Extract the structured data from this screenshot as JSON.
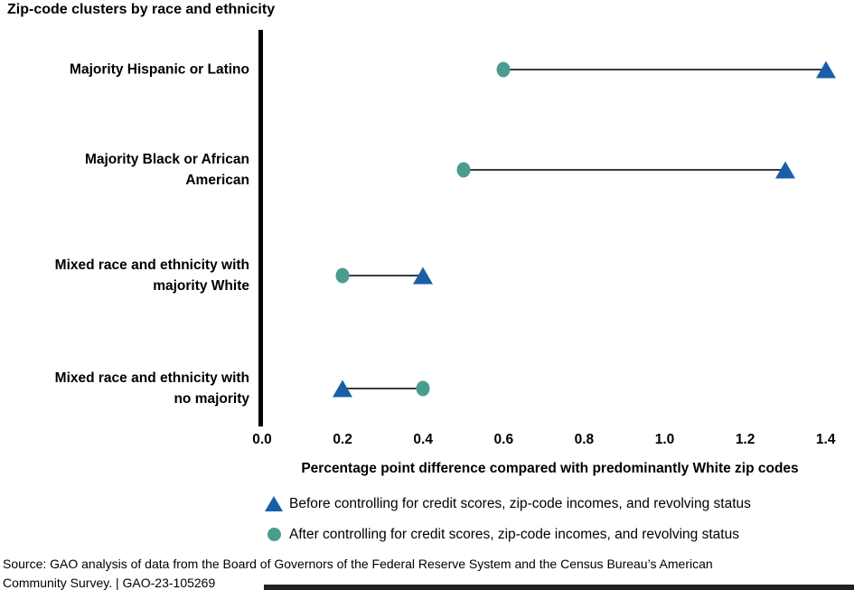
{
  "title": "Zip-code clusters by race and ethnicity",
  "chart_data": {
    "type": "scatter",
    "subtype": "dumbbell",
    "categories": [
      "Majority Hispanic or Latino",
      "Majority Black or African\nAmerican",
      "Mixed race and ethnicity with\nmajority White",
      "Mixed race and ethnicity with\nno majority"
    ],
    "series": [
      {
        "name": "Before controlling for credit scores, zip-code incomes, and revolving status",
        "marker": "triangle",
        "color": "#1A5FA6",
        "values": [
          1.4,
          1.3,
          0.4,
          0.2
        ]
      },
      {
        "name": "After controlling for credit scores, zip-code incomes, and revolving status",
        "marker": "circle",
        "color": "#4A9D8E",
        "values": [
          0.6,
          0.5,
          0.2,
          0.4
        ]
      }
    ],
    "xlabel": "Percentage point difference compared with predominantly White zip codes",
    "ylabel": "",
    "xticks": [
      "0.0",
      "0.2",
      "0.4",
      "0.6",
      "0.8",
      "1.0",
      "1.2",
      "1.4"
    ],
    "xlim": [
      0.0,
      1.4
    ],
    "grid": false,
    "legend_position": "bottom",
    "connector_color": "#3c3c3c",
    "axis_color": "#000000"
  },
  "source": {
    "line1": "Source: GAO analysis of data from the Board of Governors of the Federal Reserve System and the Census Bureau’s American",
    "line2": "Community Survey.  |  GAO-23-105269"
  }
}
